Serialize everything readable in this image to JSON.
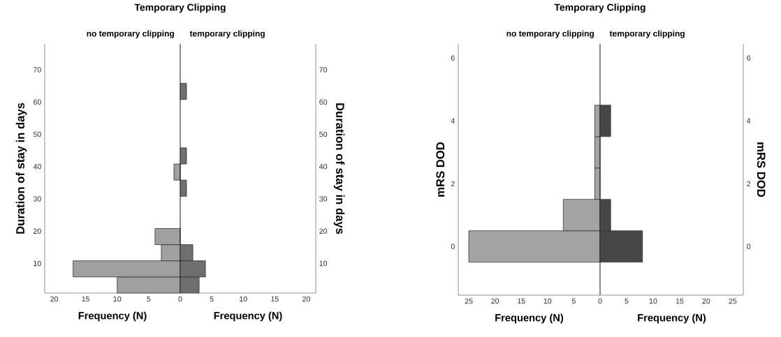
{
  "chart_data": [
    {
      "type": "histogram",
      "orientation": "horizontal",
      "title": "Temporary Clipping",
      "subtitle": "no temporary clipping",
      "xlabel": "Frequency (N)",
      "ylabel": "Duration of stay in days",
      "bins": [
        0.8,
        5.8,
        10.8,
        15.8,
        20.8,
        25.8,
        30.8,
        35.8,
        40.8,
        45.8,
        50.8,
        55.8,
        60.8,
        65.8
      ],
      "values": [
        10,
        17,
        3,
        4,
        0,
        0,
        0,
        1,
        0,
        0,
        0,
        0,
        0
      ],
      "color": "#a0a0a0",
      "xlim": [
        21.5,
        0
      ],
      "xticks": [
        20,
        15,
        10,
        5,
        0
      ],
      "ylim": [
        0.8,
        78
      ],
      "yticks": [
        10,
        20,
        30,
        40,
        50,
        60,
        70
      ]
    },
    {
      "type": "histogram",
      "orientation": "horizontal",
      "subtitle": "temporary clipping",
      "xlabel": "Frequency (N)",
      "ylabel": "Duration of stay in days",
      "bins": [
        0.8,
        5.8,
        10.8,
        15.8,
        20.8,
        25.8,
        30.8,
        35.8,
        40.8,
        45.8,
        50.8,
        55.8,
        60.8,
        65.8
      ],
      "values": [
        3,
        4,
        2,
        0,
        0,
        0,
        1,
        0,
        1,
        0,
        0,
        0,
        1
      ],
      "color": "#6e6e6e",
      "xlim": [
        0,
        21.5
      ],
      "xticks": [
        5,
        10,
        15,
        20
      ],
      "ylim": [
        0.8,
        78
      ],
      "yticks": [
        10,
        20,
        30,
        40,
        50,
        60,
        70
      ]
    },
    {
      "type": "histogram",
      "orientation": "horizontal",
      "title": "Temporary Clipping",
      "subtitle": "no temporary clipping",
      "xlabel": "Frequency (N)",
      "ylabel": "mRS DOD",
      "bins": [
        -0.5,
        0.5,
        1.5,
        2.5,
        3.5,
        4.5
      ],
      "values": [
        25,
        7,
        1,
        1,
        1
      ],
      "color": "#a3a3a3",
      "xlim": [
        27,
        0
      ],
      "xticks": [
        25,
        20,
        15,
        10,
        5,
        0
      ],
      "ylim": [
        -1.55,
        6.45
      ],
      "yticks": [
        0,
        2,
        4,
        6
      ]
    },
    {
      "type": "histogram",
      "orientation": "horizontal",
      "subtitle": "temporary clipping",
      "xlabel": "Frequency (N)",
      "ylabel": "mRS DOD",
      "bins": [
        -0.5,
        0.5,
        1.5,
        2.5,
        3.5,
        4.5
      ],
      "values": [
        8,
        2,
        0,
        0,
        2
      ],
      "color": "#474747",
      "xlim": [
        0,
        27
      ],
      "xticks": [
        5,
        10,
        15,
        20,
        25
      ],
      "ylim": [
        -1.55,
        6.45
      ],
      "yticks": [
        0,
        2,
        4,
        6
      ]
    }
  ]
}
